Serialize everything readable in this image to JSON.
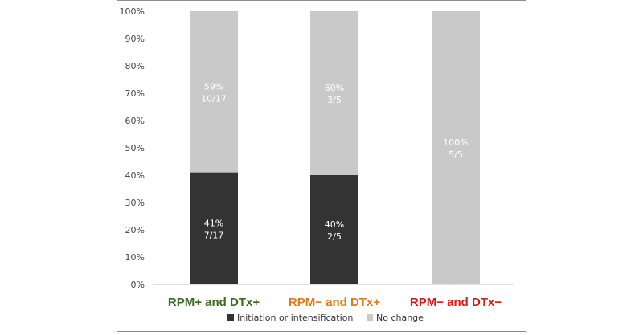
{
  "chart_data": {
    "type": "bar",
    "stacked": true,
    "categories": [
      "RPM+ and DTx+",
      "RPM− and DTx+",
      "RPM− and DTx−"
    ],
    "category_colors": [
      "#3a6b22",
      "#e07a1c",
      "#d11a1a"
    ],
    "ylim": [
      0,
      100
    ],
    "y_ticks": [
      "0%",
      "10%",
      "20%",
      "30%",
      "40%",
      "50%",
      "60%",
      "70%",
      "80%",
      "90%",
      "100%"
    ],
    "grid": false,
    "series": [
      {
        "name": "Initiation or intensification",
        "color": "#333333",
        "values": [
          41,
          40,
          0
        ],
        "labels": [
          [
            "41%",
            "7/17"
          ],
          [
            "40%",
            "2/5"
          ],
          null
        ]
      },
      {
        "name": "No change",
        "color": "#c9c9c9",
        "values": [
          59,
          60,
          100
        ],
        "labels": [
          [
            "59%",
            "10/17"
          ],
          [
            "60%",
            "3/5"
          ],
          [
            "100%",
            "5/5"
          ]
        ]
      }
    ],
    "legend_position": "bottom"
  }
}
